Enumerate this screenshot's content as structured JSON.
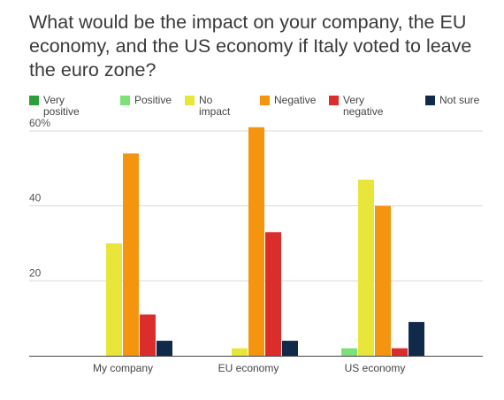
{
  "chart_data": {
    "type": "bar",
    "title": "What would be the impact on your company, the EU economy, and the US economy if Italy voted to leave the euro zone?",
    "xlabel": "",
    "ylabel": "",
    "ylim": [
      0,
      60
    ],
    "yticks": [
      {
        "value": 20,
        "label": "20"
      },
      {
        "value": 40,
        "label": "40"
      },
      {
        "value": 60,
        "label": "60%"
      }
    ],
    "grid": true,
    "legend_position": "top",
    "categories": [
      "My company",
      "EU economy",
      "US economy"
    ],
    "series": [
      {
        "name": "Very positive",
        "color": "#2e9e3a",
        "values": [
          0,
          0,
          0
        ]
      },
      {
        "name": "Positive",
        "color": "#7ee07a",
        "values": [
          0,
          0,
          2
        ]
      },
      {
        "name": "No impact",
        "color": "#e8e63a",
        "values": [
          30,
          2,
          47
        ]
      },
      {
        "name": "Negative",
        "color": "#f5940f",
        "values": [
          54,
          61,
          40
        ]
      },
      {
        "name": "Very negative",
        "color": "#dc2d2d",
        "values": [
          11,
          33,
          2
        ]
      },
      {
        "name": "Not sure",
        "color": "#112a4a",
        "values": [
          4,
          4,
          9
        ]
      }
    ]
  }
}
